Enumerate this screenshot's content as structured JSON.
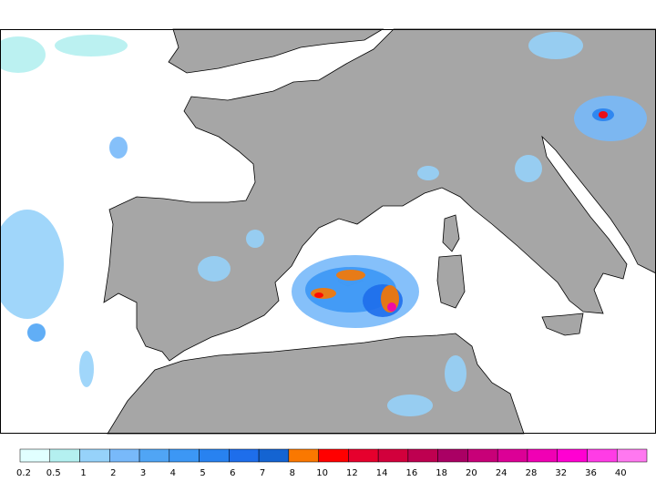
{
  "colorbar": {
    "levels": [
      0.2,
      0.5,
      1,
      2,
      3,
      4,
      5,
      6,
      7,
      8,
      10,
      12,
      14,
      16,
      18,
      20,
      24,
      28,
      32,
      36,
      40
    ],
    "colors": [
      "#e1ffff",
      "#b4f0f0",
      "#96d2fa",
      "#78b9fa",
      "#50a5f5",
      "#3c97f5",
      "#2882f0",
      "#1e6eeb",
      "#1464d2",
      "#fa7800",
      "#ff0000",
      "#e6002d",
      "#d2003c",
      "#be0050",
      "#aa0064",
      "#c80078",
      "#dc0096",
      "#f000b4",
      "#ff00d2",
      "#ff3ce6",
      "#ff78f0"
    ]
  }
}
